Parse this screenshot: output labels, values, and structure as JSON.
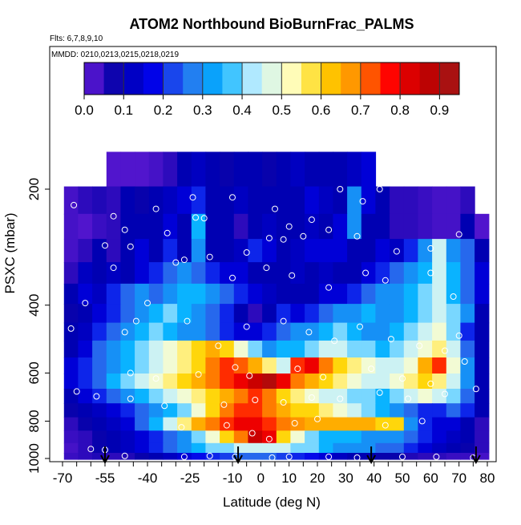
{
  "header": {
    "title": "ATOM2 Northbound BioBurnFrac_PALMS",
    "flights": "Flts: 6,7,8,9,10",
    "dates": "MMDD: 0210,0213,0215,0218,0219"
  },
  "colorbar": {
    "ticks": [
      "0.0",
      "0.1",
      "0.2",
      "0.3",
      "0.4",
      "0.5",
      "0.6",
      "0.7",
      "0.8",
      "0.9"
    ],
    "range": [
      0.0,
      0.95
    ],
    "colors": [
      "#6a1bd8",
      "#0000a8",
      "#0000e8",
      "#2a74ee",
      "#00b0ff",
      "#bfeeff",
      "#ffffc8",
      "#ffd400",
      "#ff8a00",
      "#ff0000",
      "#c00000",
      "#a01818"
    ]
  },
  "chart_data": {
    "type": "heatmap",
    "xlabel": "Latitude (deg N)",
    "ylabel": "PSXC (mbar)",
    "x_ticks": [
      "-70",
      "-55",
      "-40",
      "-25",
      "-10",
      "0",
      "10",
      "20",
      "30",
      "40",
      "50",
      "60",
      "70",
      "80"
    ],
    "y_ticks": [
      "200",
      "400",
      "600",
      "800",
      "1000"
    ],
    "xlim": [
      -70,
      85
    ],
    "ylim": [
      1010,
      45
    ],
    "log_y": true,
    "latitudes": [
      -67,
      -62,
      -57,
      -52,
      -47,
      -42,
      -37,
      -32,
      -27,
      -22,
      -17,
      -12,
      -7,
      -2,
      3,
      8,
      13,
      18,
      23,
      28,
      33,
      38,
      43,
      48,
      53,
      58,
      63,
      68,
      73,
      78
    ],
    "pressure_levels": [
      180,
      215,
      250,
      290,
      330,
      375,
      420,
      470,
      520,
      575,
      630,
      690,
      750,
      815,
      880,
      945,
      990
    ],
    "values": [
      [
        null,
        null,
        null,
        0.02,
        0.02,
        0.02,
        0.03,
        0.05,
        0.1,
        0.12,
        0.1,
        0.08,
        0.1,
        0.1,
        0.08,
        0.1,
        0.12,
        0.1,
        0.1,
        0.1,
        0.12,
        0.15,
        null,
        null,
        null,
        null,
        null,
        null,
        null,
        null
      ],
      [
        0.03,
        0.05,
        0.06,
        0.05,
        0.1,
        0.08,
        0.1,
        0.12,
        0.15,
        0.2,
        0.1,
        0.1,
        0.12,
        0.1,
        0.1,
        0.1,
        0.1,
        0.15,
        0.12,
        0.1,
        0.3,
        0.15,
        0.1,
        0.05,
        0.05,
        0.04,
        0.03,
        0.03,
        0.05,
        null
      ],
      [
        0.03,
        0.02,
        0.04,
        0.05,
        0.1,
        0.1,
        0.1,
        0.15,
        0.1,
        0.35,
        0.1,
        0.1,
        0.05,
        0.1,
        0.12,
        0.1,
        0.1,
        0.12,
        0.1,
        0.15,
        0.3,
        0.1,
        0.1,
        0.05,
        0.05,
        0.04,
        0.03,
        0.03,
        0.1,
        0.02
      ],
      [
        0.03,
        0.05,
        0.1,
        0.05,
        0.1,
        0.15,
        0.1,
        0.2,
        0.1,
        0.3,
        0.1,
        0.1,
        0.12,
        0.2,
        0.15,
        0.1,
        0.12,
        0.15,
        0.15,
        0.15,
        0.1,
        0.1,
        0.15,
        0.12,
        0.2,
        0.3,
        0.45,
        0.3,
        0.25,
        0.1
      ],
      [
        0.05,
        0.12,
        0.1,
        0.12,
        0.1,
        0.15,
        0.2,
        0.25,
        0.3,
        0.25,
        0.2,
        0.15,
        0.15,
        0.1,
        0.1,
        0.1,
        0.12,
        0.1,
        0.12,
        0.1,
        0.1,
        0.15,
        0.2,
        0.25,
        0.3,
        0.35,
        0.45,
        0.35,
        0.25,
        0.15
      ],
      [
        0.1,
        0.15,
        0.12,
        0.2,
        0.25,
        0.3,
        0.25,
        0.3,
        0.35,
        0.35,
        0.3,
        0.25,
        0.2,
        0.15,
        0.12,
        0.1,
        0.1,
        0.1,
        0.15,
        0.15,
        0.2,
        0.25,
        0.3,
        0.3,
        0.35,
        0.4,
        0.45,
        0.35,
        0.25,
        0.15
      ],
      [
        0.08,
        0.1,
        0.15,
        0.2,
        0.25,
        0.3,
        0.35,
        0.4,
        0.35,
        0.3,
        0.25,
        0.2,
        0.1,
        0.05,
        0.1,
        0.2,
        0.15,
        0.2,
        0.25,
        0.3,
        0.3,
        0.35,
        0.3,
        0.3,
        0.35,
        0.4,
        0.45,
        0.4,
        0.3,
        0.1
      ],
      [
        0.1,
        0.12,
        0.2,
        0.25,
        0.3,
        0.35,
        0.4,
        0.35,
        0.3,
        0.3,
        0.25,
        0.2,
        0.15,
        0.15,
        0.2,
        0.25,
        0.3,
        0.3,
        0.35,
        0.4,
        0.35,
        0.3,
        0.3,
        0.35,
        0.4,
        0.45,
        0.5,
        0.4,
        0.2,
        0.1
      ],
      [
        0.1,
        0.15,
        0.25,
        0.3,
        0.35,
        0.4,
        0.45,
        0.5,
        0.55,
        0.6,
        0.65,
        0.6,
        0.5,
        0.4,
        0.3,
        0.35,
        0.35,
        0.4,
        0.45,
        0.45,
        0.4,
        0.4,
        0.35,
        0.4,
        0.45,
        0.5,
        0.55,
        0.45,
        0.25,
        0.1
      ],
      [
        0.15,
        0.2,
        0.25,
        0.3,
        0.35,
        0.4,
        0.45,
        0.5,
        0.55,
        0.6,
        0.7,
        0.75,
        0.72,
        0.65,
        0.55,
        0.45,
        0.75,
        0.8,
        0.7,
        0.6,
        0.55,
        0.5,
        0.45,
        0.45,
        0.5,
        0.65,
        0.75,
        0.5,
        0.3,
        0.1
      ],
      [
        0.15,
        0.2,
        0.25,
        0.35,
        0.4,
        0.45,
        0.5,
        0.55,
        0.6,
        0.65,
        0.7,
        0.75,
        0.8,
        0.85,
        0.9,
        0.8,
        0.7,
        0.65,
        0.6,
        0.55,
        0.5,
        0.45,
        0.45,
        0.5,
        0.55,
        0.6,
        0.55,
        0.45,
        0.3,
        0.1
      ],
      [
        0.1,
        0.15,
        0.2,
        0.25,
        0.3,
        0.35,
        0.4,
        0.45,
        0.5,
        0.55,
        0.6,
        0.65,
        0.7,
        0.75,
        0.7,
        0.6,
        0.55,
        0.5,
        0.45,
        0.45,
        0.4,
        0.4,
        0.35,
        0.4,
        0.45,
        0.5,
        0.45,
        0.4,
        0.25,
        0.1
      ],
      [
        0.08,
        0.1,
        0.12,
        0.15,
        0.2,
        0.25,
        0.3,
        0.35,
        0.4,
        0.5,
        0.6,
        0.7,
        0.75,
        0.75,
        0.7,
        0.65,
        0.6,
        0.6,
        0.55,
        0.5,
        0.45,
        0.4,
        0.35,
        0.3,
        0.25,
        0.2,
        0.2,
        0.25,
        0.2,
        0.1
      ],
      [
        0.05,
        0.08,
        0.1,
        0.12,
        0.15,
        0.25,
        0.35,
        0.45,
        0.55,
        0.65,
        0.7,
        0.75,
        0.8,
        0.8,
        0.75,
        0.7,
        0.68,
        0.65,
        0.65,
        0.65,
        0.65,
        0.65,
        0.6,
        0.6,
        0.3,
        0.2,
        0.15,
        0.15,
        0.1,
        0.05
      ],
      [
        0.04,
        0.05,
        0.08,
        0.1,
        0.12,
        0.15,
        0.2,
        0.25,
        0.3,
        0.4,
        0.5,
        0.6,
        0.7,
        0.85,
        0.8,
        0.6,
        0.5,
        0.4,
        0.35,
        0.35,
        0.35,
        0.3,
        0.3,
        0.3,
        0.25,
        0.2,
        0.15,
        0.12,
        0.1,
        0.05
      ],
      [
        0.03,
        0.05,
        0.08,
        0.1,
        0.12,
        0.15,
        0.2,
        0.25,
        0.3,
        0.35,
        0.4,
        0.4,
        0.45,
        0.45,
        0.45,
        0.45,
        0.4,
        0.4,
        0.35,
        0.3,
        0.3,
        0.3,
        0.25,
        0.25,
        0.2,
        0.15,
        0.12,
        0.1,
        0.08,
        0.05
      ],
      [
        0.04,
        0.05,
        0.06,
        0.05,
        0.06,
        0.08,
        0.1,
        0.12,
        0.15,
        0.18,
        0.2,
        0.22,
        0.25,
        0.25,
        0.25,
        0.22,
        0.2,
        0.18,
        0.15,
        0.12,
        0.1,
        0.1,
        0.08,
        0.08,
        0.06,
        0.05,
        0.05,
        0.04,
        0.04,
        0.03
      ]
    ],
    "flight_points_deg_n": [
      [
        -66,
        220
      ],
      [
        -58,
        190
      ],
      [
        -52,
        235
      ],
      [
        -48,
        255
      ],
      [
        -37,
        225
      ],
      [
        -24,
        210
      ],
      [
        -23,
        237
      ],
      [
        -20,
        238
      ],
      [
        -10,
        210
      ],
      [
        5,
        225
      ],
      [
        10,
        250
      ],
      [
        18,
        240
      ],
      [
        28,
        200
      ],
      [
        36,
        215
      ],
      [
        42,
        200
      ],
      [
        -55,
        280
      ],
      [
        -46,
        282
      ],
      [
        -33,
        260
      ],
      [
        -27,
        305
      ],
      [
        -18,
        300
      ],
      [
        -5,
        292
      ],
      [
        3,
        268
      ],
      [
        8,
        270
      ],
      [
        15,
        265
      ],
      [
        24,
        255
      ],
      [
        34,
        265
      ],
      [
        48,
        290
      ],
      [
        60,
        285
      ],
      [
        70,
        262
      ],
      [
        -62,
        395
      ],
      [
        -52,
        320
      ],
      [
        -40,
        395
      ],
      [
        -30,
        310
      ],
      [
        -10,
        340
      ],
      [
        2,
        320
      ],
      [
        11,
        335
      ],
      [
        24,
        360
      ],
      [
        37,
        330
      ],
      [
        44,
        345
      ],
      [
        60,
        330
      ],
      [
        68,
        380
      ],
      [
        -67,
        460
      ],
      [
        -48,
        470
      ],
      [
        -44,
        440
      ],
      [
        -26,
        440
      ],
      [
        -15,
        510
      ],
      [
        -5,
        455
      ],
      [
        8,
        440
      ],
      [
        17,
        470
      ],
      [
        26,
        495
      ],
      [
        35,
        455
      ],
      [
        46,
        490
      ],
      [
        56,
        510
      ],
      [
        65,
        525
      ],
      [
        70,
        480
      ],
      [
        -46,
        600
      ],
      [
        -37,
        620
      ],
      [
        -22,
        605
      ],
      [
        -9,
        580
      ],
      [
        -4,
        610
      ],
      [
        13,
        585
      ],
      [
        22,
        615
      ],
      [
        39,
        585
      ],
      [
        50,
        620
      ],
      [
        60,
        640
      ],
      [
        72,
        560
      ],
      [
        -65,
        670
      ],
      [
        -58,
        690
      ],
      [
        -46,
        700
      ],
      [
        -34,
        730
      ],
      [
        -13,
        725
      ],
      [
        -2,
        705
      ],
      [
        8,
        715
      ],
      [
        18,
        695
      ],
      [
        28,
        700
      ],
      [
        42,
        675
      ],
      [
        52,
        700
      ],
      [
        65,
        680
      ],
      [
        76,
        660
      ],
      [
        -28,
        830
      ],
      [
        -12,
        820
      ],
      [
        -3,
        860
      ],
      [
        3,
        890
      ],
      [
        12,
        810
      ],
      [
        20,
        790
      ],
      [
        44,
        820
      ],
      [
        57,
        800
      ],
      [
        -60,
        945
      ],
      [
        -55,
        950
      ],
      [
        -48,
        985
      ],
      [
        -27,
        990
      ],
      [
        -18,
        985
      ],
      [
        -9,
        990
      ],
      [
        4,
        995
      ],
      [
        10,
        990
      ],
      [
        24,
        990
      ],
      [
        34,
        995
      ],
      [
        50,
        990
      ],
      [
        62,
        990
      ],
      [
        75,
        995
      ]
    ],
    "arrows_deg_n": [
      -55,
      -8,
      39,
      76
    ]
  }
}
